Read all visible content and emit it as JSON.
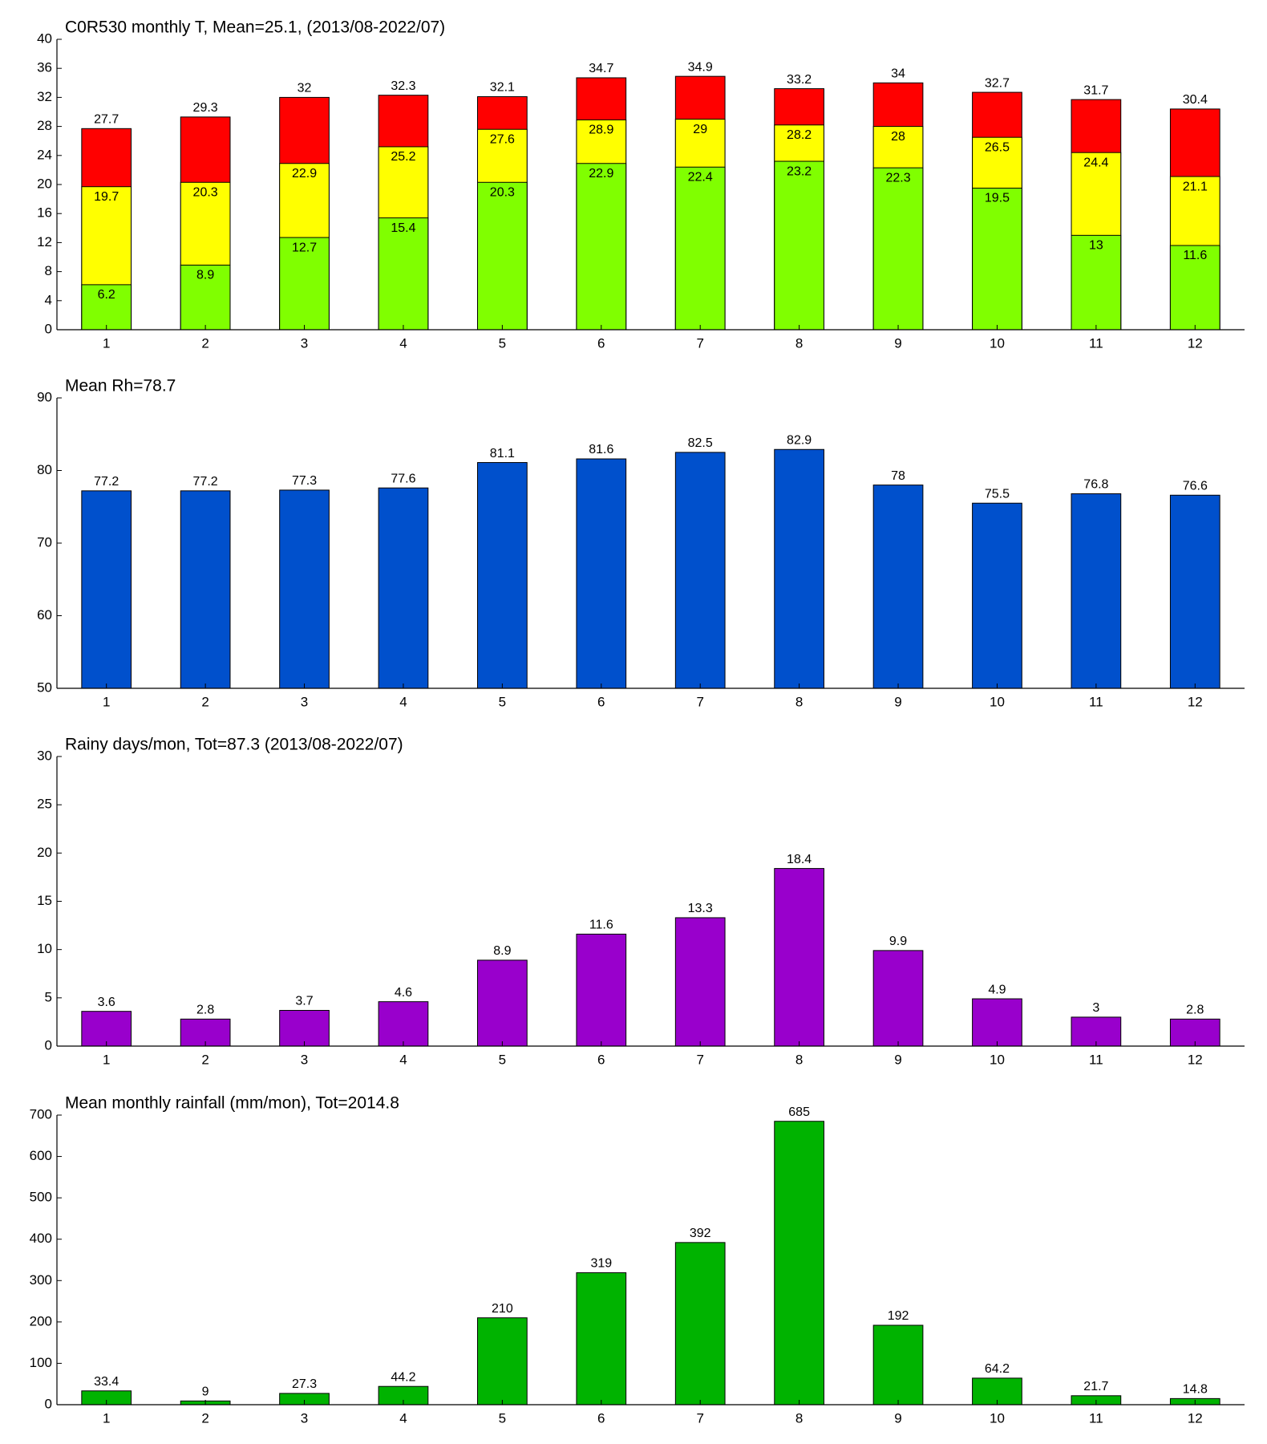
{
  "chart_data": [
    {
      "type": "bar",
      "title": "C0R530 monthly T, Mean=25.1, (2013/08-2022/07)",
      "categories": [
        "1",
        "2",
        "3",
        "4",
        "5",
        "6",
        "7",
        "8",
        "9",
        "10",
        "11",
        "12"
      ],
      "series": [
        {
          "color": "#ff0000",
          "values": [
            27.7,
            29.3,
            32,
            32.3,
            32.1,
            34.7,
            34.9,
            33.2,
            34,
            32.7,
            31.7,
            30.4
          ]
        },
        {
          "color": "#ffff00",
          "values": [
            19.7,
            20.3,
            22.9,
            25.2,
            27.6,
            28.9,
            29,
            28.2,
            28,
            26.5,
            24.4,
            21.1
          ]
        },
        {
          "color": "#80ff00",
          "values": [
            6.2,
            8.9,
            12.7,
            15.4,
            20.3,
            22.9,
            22.4,
            23.2,
            22.3,
            19.5,
            13,
            11.6
          ]
        }
      ],
      "ylim": [
        0,
        40
      ],
      "yticks": [
        0,
        4,
        8,
        12,
        16,
        20,
        24,
        28,
        32,
        36,
        40
      ]
    },
    {
      "type": "bar",
      "title": "Mean Rh=78.7",
      "categories": [
        "1",
        "2",
        "3",
        "4",
        "5",
        "6",
        "7",
        "8",
        "9",
        "10",
        "11",
        "12"
      ],
      "series": [
        {
          "color": "#0050cc",
          "values": [
            77.2,
            77.2,
            77.3,
            77.6,
            81.1,
            81.6,
            82.5,
            82.9,
            78,
            75.5,
            76.8,
            76.6
          ]
        }
      ],
      "ylim": [
        50,
        90
      ],
      "yticks": [
        50,
        60,
        70,
        80,
        90
      ]
    },
    {
      "type": "bar",
      "title": "Rainy days/mon, Tot=87.3 (2013/08-2022/07)",
      "categories": [
        "1",
        "2",
        "3",
        "4",
        "5",
        "6",
        "7",
        "8",
        "9",
        "10",
        "11",
        "12"
      ],
      "series": [
        {
          "color": "#9900cc",
          "values": [
            3.6,
            2.8,
            3.7,
            4.6,
            8.9,
            11.6,
            13.3,
            18.4,
            9.9,
            4.9,
            3,
            2.8
          ]
        }
      ],
      "ylim": [
        0,
        30
      ],
      "yticks": [
        0,
        5,
        10,
        15,
        20,
        25,
        30
      ]
    },
    {
      "type": "bar",
      "title": "Mean monthly rainfall (mm/mon), Tot=2014.8",
      "categories": [
        "1",
        "2",
        "3",
        "4",
        "5",
        "6",
        "7",
        "8",
        "9",
        "10",
        "11",
        "12"
      ],
      "series": [
        {
          "color": "#00b300",
          "values": [
            33.4,
            9,
            27.3,
            44.2,
            210,
            319,
            392,
            685,
            192,
            64.2,
            21.7,
            14.8
          ]
        }
      ],
      "ylim": [
        0,
        700
      ],
      "yticks": [
        0,
        100,
        200,
        300,
        400,
        500,
        600,
        700
      ]
    }
  ]
}
